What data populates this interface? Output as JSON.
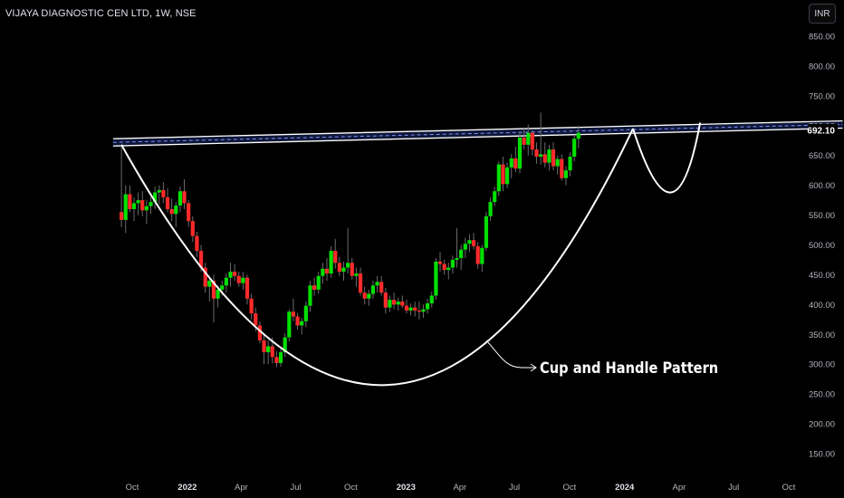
{
  "header": {
    "symbol_title": "VIJAYA DIAGNOSTIC CEN LTD, 1W, NSE",
    "currency": "INR"
  },
  "annotation": {
    "label": "Cup and Handle Pattern"
  },
  "colors": {
    "background": "#000000",
    "up_candle": "#00e000",
    "down_candle": "#ff2a2a",
    "wick": "#6b6b6b",
    "trendline": "#ffffff",
    "resistance_fill": "#1c2a66",
    "resistance_dash": "#7f8fff",
    "axis_text": "#b2b5be"
  },
  "chart_data": {
    "type": "candlestick",
    "title": "VIJAYA DIAGNOSTIC CEN LTD, 1W, NSE",
    "x_axis": {
      "tick_labels": [
        "Oct",
        "2022",
        "Apr",
        "Jul",
        "Oct",
        "2023",
        "Apr",
        "Jul",
        "Oct",
        "2024",
        "Apr",
        "Jul",
        "Oct"
      ],
      "bold_labels": [
        "2022",
        "2023",
        "2024"
      ],
      "tick_dates": [
        "2021-10-01",
        "2022-01-01",
        "2022-04-01",
        "2022-07-01",
        "2022-10-01",
        "2023-01-01",
        "2023-04-01",
        "2023-07-01",
        "2023-10-01",
        "2024-01-01",
        "2024-04-01",
        "2024-07-01",
        "2024-10-01"
      ]
    },
    "y_axis": {
      "tick_labels": [
        "850.00",
        "800.00",
        "750.00",
        "700.00",
        "650.00",
        "600.00",
        "550.00",
        "500.00",
        "450.00",
        "400.00",
        "350.00",
        "300.00",
        "250.00",
        "200.00",
        "150.00"
      ],
      "ylim": [
        125,
        880
      ]
    },
    "last_price": "692.10",
    "series": [
      {
        "week_start": "2021-09-13",
        "ohlc": [
          [
            555,
            668,
            530,
            542
          ],
          [
            542,
            600,
            520,
            585
          ],
          [
            585,
            600,
            555,
            560
          ],
          [
            560,
            580,
            540,
            570
          ],
          [
            570,
            588,
            550,
            575
          ],
          [
            575,
            590,
            548,
            558
          ],
          [
            558,
            575,
            535,
            565
          ],
          [
            565,
            580,
            552,
            572
          ],
          [
            572,
            598,
            560,
            588
          ],
          [
            588,
            600,
            568,
            592
          ],
          [
            592,
            605,
            570,
            580
          ],
          [
            580,
            595,
            555,
            560
          ],
          [
            560,
            578,
            540,
            552
          ],
          [
            552,
            572,
            530,
            566
          ],
          [
            566,
            598,
            555,
            590
          ],
          [
            590,
            610,
            560,
            570
          ],
          [
            570,
            575,
            530,
            540
          ],
          [
            540,
            548,
            505,
            515
          ],
          [
            515,
            522,
            480,
            490
          ],
          [
            490,
            500,
            455,
            462
          ],
          [
            462,
            470,
            420,
            430
          ],
          [
            430,
            448,
            405,
            440
          ],
          [
            440,
            450,
            370,
            410
          ],
          [
            410,
            432,
            395,
            425
          ],
          [
            425,
            440,
            415,
            432
          ],
          [
            432,
            452,
            420,
            445
          ],
          [
            445,
            470,
            430,
            455
          ],
          [
            455,
            468,
            440,
            448
          ],
          [
            448,
            455,
            430,
            436
          ],
          [
            436,
            455,
            425,
            445
          ],
          [
            445,
            450,
            400,
            410
          ],
          [
            410,
            418,
            375,
            385
          ],
          [
            385,
            395,
            355,
            365
          ],
          [
            365,
            372,
            335,
            340
          ],
          [
            340,
            350,
            300,
            320
          ],
          [
            320,
            340,
            300,
            330
          ],
          [
            330,
            345,
            302,
            312
          ],
          [
            312,
            322,
            295,
            302
          ],
          [
            302,
            328,
            296,
            320
          ],
          [
            320,
            352,
            312,
            345
          ],
          [
            345,
            392,
            338,
            388
          ],
          [
            388,
            410,
            372,
            380
          ],
          [
            380,
            386,
            358,
            365
          ],
          [
            365,
            378,
            350,
            372
          ],
          [
            372,
            405,
            362,
            398
          ],
          [
            398,
            440,
            388,
            432
          ],
          [
            432,
            445,
            415,
            425
          ],
          [
            425,
            455,
            418,
            448
          ],
          [
            448,
            470,
            435,
            460
          ],
          [
            460,
            478,
            440,
            452
          ],
          [
            452,
            498,
            445,
            490
          ],
          [
            490,
            510,
            460,
            470
          ],
          [
            470,
            480,
            448,
            455
          ],
          [
            455,
            472,
            440,
            462
          ],
          [
            462,
            528,
            452,
            470
          ],
          [
            470,
            478,
            442,
            448
          ],
          [
            448,
            462,
            430,
            452
          ],
          [
            452,
            462,
            415,
            420
          ],
          [
            420,
            430,
            400,
            410
          ],
          [
            410,
            425,
            398,
            418
          ],
          [
            418,
            440,
            410,
            432
          ],
          [
            432,
            448,
            420,
            438
          ],
          [
            438,
            448,
            415,
            420
          ],
          [
            420,
            428,
            385,
            395
          ],
          [
            395,
            415,
            388,
            408
          ],
          [
            408,
            420,
            392,
            400
          ],
          [
            400,
            412,
            390,
            405
          ],
          [
            405,
            415,
            394,
            398
          ],
          [
            398,
            408,
            385,
            390
          ],
          [
            390,
            402,
            382,
            395
          ],
          [
            395,
            405,
            380,
            390
          ],
          [
            390,
            405,
            375,
            388
          ],
          [
            388,
            400,
            378,
            392
          ],
          [
            392,
            410,
            385,
            402
          ],
          [
            402,
            422,
            395,
            415
          ],
          [
            415,
            478,
            408,
            472
          ],
          [
            472,
            488,
            455,
            468
          ],
          [
            468,
            475,
            450,
            458
          ],
          [
            458,
            470,
            442,
            462
          ],
          [
            462,
            482,
            452,
            475
          ],
          [
            475,
            528,
            462,
            478
          ],
          [
            478,
            500,
            458,
            492
          ],
          [
            492,
            512,
            478,
            502
          ],
          [
            502,
            518,
            488,
            508
          ],
          [
            508,
            520,
            492,
            498
          ],
          [
            498,
            505,
            460,
            468
          ],
          [
            468,
            500,
            455,
            495
          ],
          [
            495,
            555,
            490,
            548
          ],
          [
            548,
            580,
            540,
            572
          ],
          [
            572,
            598,
            565,
            590
          ],
          [
            590,
            640,
            582,
            635
          ],
          [
            635,
            648,
            590,
            602
          ],
          [
            602,
            638,
            595,
            630
          ],
          [
            630,
            652,
            612,
            645
          ],
          [
            645,
            665,
            622,
            628
          ],
          [
            628,
            690,
            620,
            680
          ],
          [
            680,
            695,
            660,
            668
          ],
          [
            668,
            702,
            650,
            688
          ],
          [
            688,
            692,
            650,
            660
          ],
          [
            660,
            672,
            636,
            648
          ],
          [
            648,
            722,
            635,
            652
          ],
          [
            652,
            672,
            630,
            638
          ],
          [
            638,
            668,
            625,
            660
          ],
          [
            660,
            672,
            625,
            632
          ],
          [
            632,
            650,
            618,
            644
          ],
          [
            644,
            652,
            608,
            612
          ],
          [
            612,
            632,
            600,
            625
          ],
          [
            625,
            655,
            615,
            648
          ],
          [
            648,
            685,
            640,
            678
          ],
          [
            678,
            700,
            662,
            688
          ]
        ]
      }
    ],
    "annotations": [
      {
        "type": "cup-curve",
        "points": [
          [
            "2021-09-13",
            668
          ],
          [
            "2022-11-28",
            265
          ],
          [
            "2024-01-15",
            695
          ]
        ]
      },
      {
        "type": "handle-curve",
        "points": [
          [
            "2024-01-15",
            695
          ],
          [
            "2024-03-18",
            588
          ],
          [
            "2024-05-06",
            705
          ]
        ]
      },
      {
        "type": "resistance-channel",
        "points": [
          [
            "2021-08-30",
            672
          ],
          [
            "2024-12-30",
            702
          ]
        ],
        "width": 8
      }
    ]
  }
}
